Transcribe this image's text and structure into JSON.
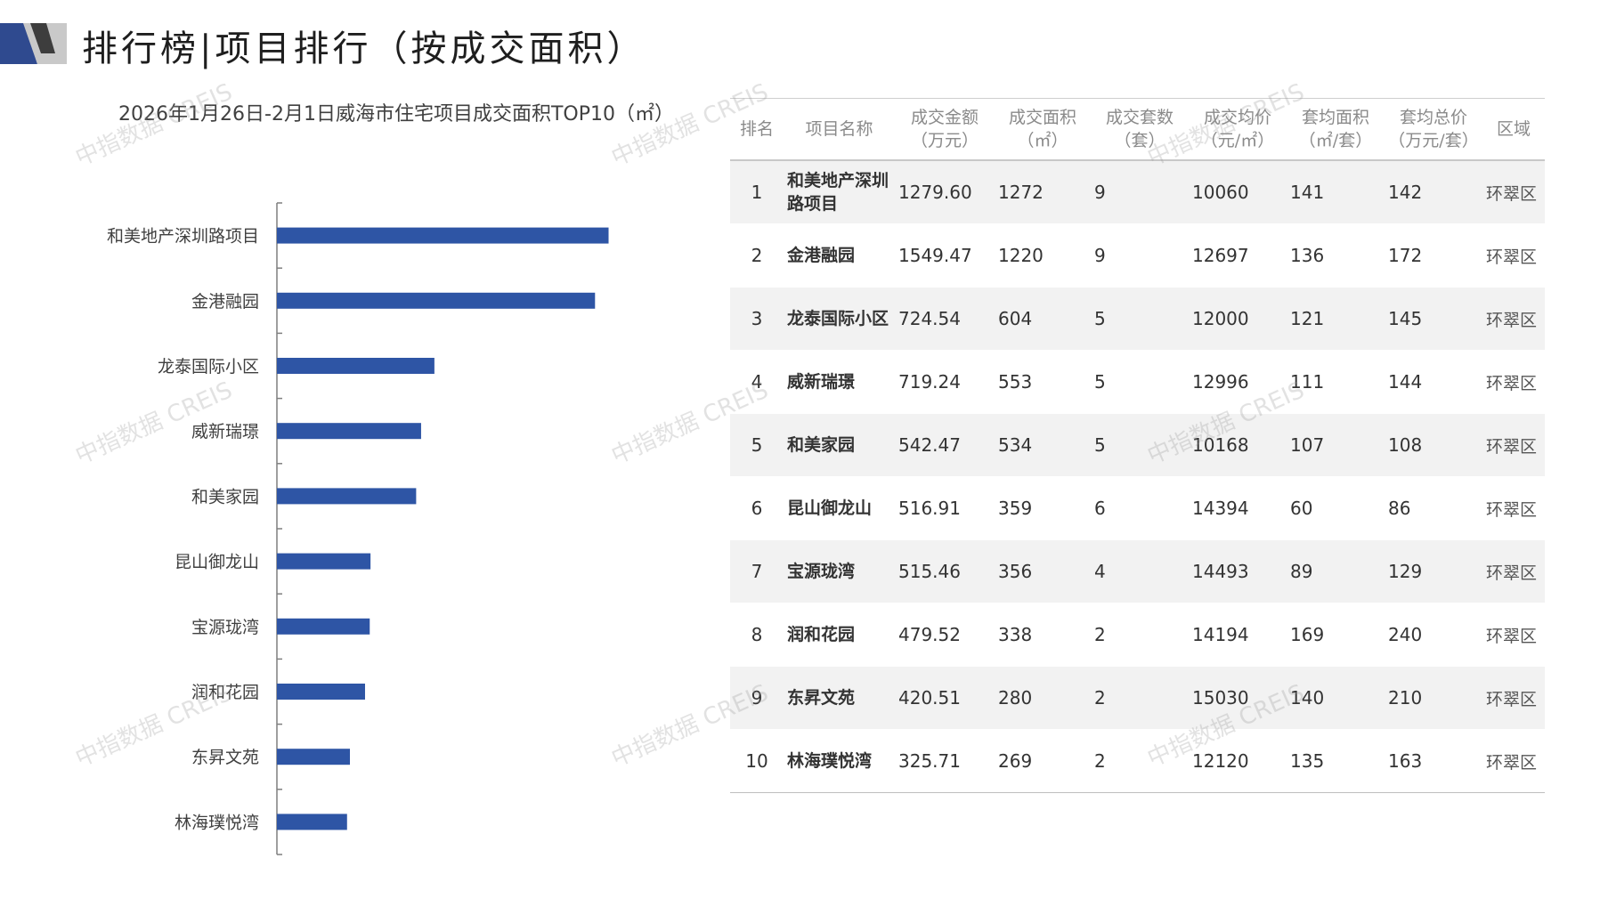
{
  "page": {
    "title": "排行榜|项目排行（按成交面积）",
    "watermark": "中指数据 CREIS",
    "colors": {
      "accent_dark": "#2f4a8f",
      "accent_light": "#c9c9c9",
      "bar": "#2e55a5"
    }
  },
  "chart_data": {
    "type": "bar",
    "orientation": "horizontal",
    "title": "2026年1月26日-2月1日威海市住宅项目成交面积TOP10（㎡）",
    "categories": [
      "和美地产深圳路项目",
      "金港融园",
      "龙泰国际小区",
      "威新瑞璟",
      "和美家园",
      "昆山御龙山",
      "宝源珑湾",
      "润和花园",
      "东昇文苑",
      "林海璞悦湾"
    ],
    "values": [
      1272,
      1220,
      604,
      553,
      534,
      359,
      356,
      338,
      280,
      269
    ],
    "xlim": [
      0,
      1400
    ],
    "grid": false,
    "legend": "none"
  },
  "table": {
    "headers": [
      "排名",
      "项目名称",
      "成交金额\n（万元）",
      "成交面积\n（㎡）",
      "成交套数\n（套）",
      "成交均价\n（元/㎡）",
      "套均面积\n（㎡/套）",
      "套均总价\n（万元/套）",
      "区域"
    ],
    "rows": [
      [
        "1",
        "和美地产深圳路项目",
        "1279.60",
        "1272",
        "9",
        "10060",
        "141",
        "142",
        "环翠区"
      ],
      [
        "2",
        "金港融园",
        "1549.47",
        "1220",
        "9",
        "12697",
        "136",
        "172",
        "环翠区"
      ],
      [
        "3",
        "龙泰国际小区",
        "724.54",
        "604",
        "5",
        "12000",
        "121",
        "145",
        "环翠区"
      ],
      [
        "4",
        "威新瑞璟",
        "719.24",
        "553",
        "5",
        "12996",
        "111",
        "144",
        "环翠区"
      ],
      [
        "5",
        "和美家园",
        "542.47",
        "534",
        "5",
        "10168",
        "107",
        "108",
        "环翠区"
      ],
      [
        "6",
        "昆山御龙山",
        "516.91",
        "359",
        "6",
        "14394",
        "60",
        "86",
        "环翠区"
      ],
      [
        "7",
        "宝源珑湾",
        "515.46",
        "356",
        "4",
        "14493",
        "89",
        "129",
        "环翠区"
      ],
      [
        "8",
        "润和花园",
        "479.52",
        "338",
        "2",
        "14194",
        "169",
        "240",
        "环翠区"
      ],
      [
        "9",
        "东昇文苑",
        "420.51",
        "280",
        "2",
        "15030",
        "140",
        "210",
        "环翠区"
      ],
      [
        "10",
        "林海璞悦湾",
        "325.71",
        "269",
        "2",
        "12120",
        "135",
        "163",
        "环翠区"
      ]
    ]
  }
}
